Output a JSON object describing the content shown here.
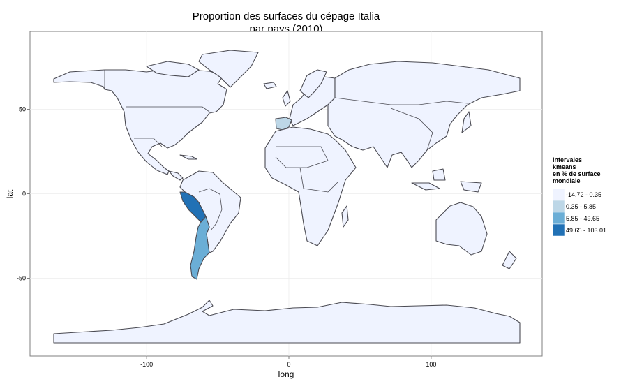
{
  "title_line1": "Proportion des surfaces du cépage Italia",
  "title_line2": "par pays (2010)",
  "xlabel": "long",
  "ylabel": "lat",
  "x_ticks": [
    {
      "value": -100,
      "label": "-100"
    },
    {
      "value": 0,
      "label": "0"
    },
    {
      "value": 100,
      "label": "100"
    }
  ],
  "y_ticks": [
    {
      "value": 50,
      "label": "50"
    },
    {
      "value": 0,
      "label": "0"
    },
    {
      "value": -50,
      "label": "-50"
    }
  ],
  "legend": {
    "title_lines": [
      "Intervales",
      " kmeans",
      " en % de surface",
      " mondiale"
    ],
    "items": [
      {
        "label": "-14.72 - 0.35",
        "color": "#eff3ff"
      },
      {
        "label": "0.35 - 5.85",
        "color": "#bdd7e7"
      },
      {
        "label": "5.85 - 49.65",
        "color": "#6baed6"
      },
      {
        "label": "49.65 - 103.01",
        "color": "#2171b5"
      }
    ]
  },
  "chart_data": {
    "type": "choropleth",
    "title": "Proportion des surfaces du cépage Italia par pays (2010)",
    "xlabel": "long",
    "ylabel": "lat",
    "xlim": [
      -180,
      180
    ],
    "ylim": [
      -90,
      90
    ],
    "highlighted_regions": [
      {
        "class": "49.65 - 103.01",
        "color": "#2171b5"
      },
      {
        "class": "5.85 - 49.65",
        "color": "#6baed6"
      },
      {
        "class": "0.35 - 5.85",
        "color": "#bdd7e7"
      }
    ],
    "other_countries_class": "-14.72 - 0.35"
  }
}
